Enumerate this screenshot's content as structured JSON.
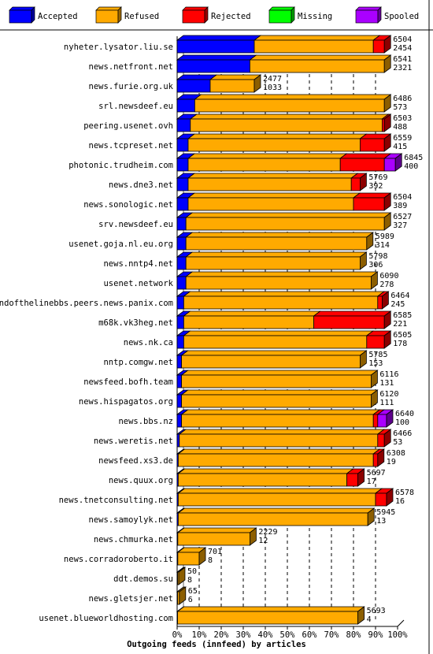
{
  "chart_data": {
    "type": "bar",
    "orientation": "horizontal",
    "stacked": true,
    "style": "3d",
    "title": "Outgoing feeds (innfeed) by articles",
    "xlabel": "",
    "ylabel": "",
    "xlim": [
      0,
      100
    ],
    "x_unit": "percent of articles",
    "ticks": [
      "0%",
      "10%",
      "20%",
      "30%",
      "40%",
      "50%",
      "60%",
      "70%",
      "80%",
      "90%",
      "100%"
    ],
    "grid": "vertical dashed",
    "legend_placement": "top",
    "legend": [
      {
        "name": "Accepted",
        "color": "#0000ff"
      },
      {
        "name": "Refused",
        "color": "#ffaa00"
      },
      {
        "name": "Rejected",
        "color": "#ff0000"
      },
      {
        "name": "Missing",
        "color": "#00ff00"
      },
      {
        "name": "Spooled",
        "color": "#aa00ff"
      }
    ],
    "colors": {
      "Accepted": "#0000ff",
      "Refused": "#ffaa00",
      "Rejected": "#ff0000",
      "Missing": "#00ff00",
      "Spooled": "#aa00ff"
    },
    "rows": [
      {
        "name": "nyheter.lysator.liu.se",
        "offered": "6504",
        "accepted": "2454",
        "segments": {
          "Accepted": 35,
          "Refused": 54,
          "Rejected": 5,
          "Spooled": 0
        }
      },
      {
        "name": "news.netfront.net",
        "offered": "6541",
        "accepted": "2321",
        "segments": {
          "Accepted": 33,
          "Refused": 61,
          "Rejected": 0,
          "Spooled": 0
        }
      },
      {
        "name": "news.furie.org.uk",
        "offered": "2477",
        "accepted": "1033",
        "segments": {
          "Accepted": 15,
          "Refused": 20,
          "Rejected": 0,
          "Spooled": 0
        }
      },
      {
        "name": "srl.newsdeef.eu",
        "offered": "6486",
        "accepted": "573",
        "segments": {
          "Accepted": 8,
          "Refused": 86,
          "Rejected": 0,
          "Spooled": 0
        }
      },
      {
        "name": "peering.usenet.ovh",
        "offered": "6503",
        "accepted": "488",
        "segments": {
          "Accepted": 6,
          "Refused": 87,
          "Rejected": 1,
          "Spooled": 0
        }
      },
      {
        "name": "news.tcpreset.net",
        "offered": "6559",
        "accepted": "415",
        "segments": {
          "Accepted": 5,
          "Refused": 78,
          "Rejected": 11,
          "Spooled": 0
        }
      },
      {
        "name": "photonic.trudheim.com",
        "offered": "6845",
        "accepted": "400",
        "segments": {
          "Accepted": 5,
          "Refused": 69,
          "Rejected": 20,
          "Spooled": 5
        }
      },
      {
        "name": "news.dne3.net",
        "offered": "5769",
        "accepted": "392",
        "segments": {
          "Accepted": 5,
          "Refused": 74,
          "Rejected": 4,
          "Spooled": 0
        }
      },
      {
        "name": "news.sonologic.net",
        "offered": "6504",
        "accepted": "389",
        "segments": {
          "Accepted": 5,
          "Refused": 75,
          "Rejected": 14,
          "Spooled": 0
        }
      },
      {
        "name": "srv.newsdeef.eu",
        "offered": "6527",
        "accepted": "327",
        "segments": {
          "Accepted": 4,
          "Refused": 90,
          "Rejected": 0,
          "Spooled": 0
        }
      },
      {
        "name": "usenet.goja.nl.eu.org",
        "offered": "5989",
        "accepted": "314",
        "segments": {
          "Accepted": 4,
          "Refused": 82,
          "Rejected": 0,
          "Spooled": 0
        }
      },
      {
        "name": "news.nntp4.net",
        "offered": "5798",
        "accepted": "306",
        "segments": {
          "Accepted": 4,
          "Refused": 79,
          "Rejected": 0,
          "Spooled": 0
        }
      },
      {
        "name": "usenet.network",
        "offered": "6090",
        "accepted": "278",
        "segments": {
          "Accepted": 4,
          "Refused": 84,
          "Rejected": 0,
          "Spooled": 0
        }
      },
      {
        "name": "endofthelinebbs.peers.news.panix.com",
        "offered": "6464",
        "accepted": "245",
        "segments": {
          "Accepted": 3,
          "Refused": 88,
          "Rejected": 2,
          "Spooled": 0
        }
      },
      {
        "name": "m68k.vk3heg.net",
        "offered": "6585",
        "accepted": "221",
        "segments": {
          "Accepted": 3,
          "Refused": 59,
          "Rejected": 32,
          "Spooled": 0
        }
      },
      {
        "name": "news.nk.ca",
        "offered": "6505",
        "accepted": "178",
        "segments": {
          "Accepted": 3,
          "Refused": 83,
          "Rejected": 8,
          "Spooled": 0
        }
      },
      {
        "name": "nntp.comgw.net",
        "offered": "5785",
        "accepted": "153",
        "segments": {
          "Accepted": 2,
          "Refused": 81,
          "Rejected": 0,
          "Spooled": 0
        }
      },
      {
        "name": "newsfeed.bofh.team",
        "offered": "6116",
        "accepted": "131",
        "segments": {
          "Accepted": 2,
          "Refused": 86,
          "Rejected": 0,
          "Spooled": 0
        }
      },
      {
        "name": "news.hispagatos.org",
        "offered": "6120",
        "accepted": "111",
        "segments": {
          "Accepted": 2,
          "Refused": 86,
          "Rejected": 0,
          "Spooled": 0
        }
      },
      {
        "name": "news.bbs.nz",
        "offered": "6640",
        "accepted": "100",
        "segments": {
          "Accepted": 2,
          "Refused": 87,
          "Rejected": 2,
          "Spooled": 4
        }
      },
      {
        "name": "news.weretis.net",
        "offered": "6466",
        "accepted": "53",
        "segments": {
          "Accepted": 1,
          "Refused": 90,
          "Rejected": 3,
          "Spooled": 0
        }
      },
      {
        "name": "newsfeed.xs3.de",
        "offered": "6308",
        "accepted": "19",
        "segments": {
          "Accepted": 0.5,
          "Refused": 88.5,
          "Rejected": 2,
          "Spooled": 0
        }
      },
      {
        "name": "news.quux.org",
        "offered": "5697",
        "accepted": "17",
        "segments": {
          "Accepted": 0.5,
          "Refused": 76.5,
          "Rejected": 5,
          "Spooled": 0
        }
      },
      {
        "name": "news.tnetconsulting.net",
        "offered": "6578",
        "accepted": "16",
        "segments": {
          "Accepted": 0.5,
          "Refused": 89.5,
          "Rejected": 5,
          "Spooled": 0
        }
      },
      {
        "name": "news.samoylyk.net",
        "offered": "5945",
        "accepted": "13",
        "segments": {
          "Accepted": 0.5,
          "Refused": 86,
          "Rejected": 0,
          "Spooled": 0
        }
      },
      {
        "name": "news.chmurka.net",
        "offered": "2229",
        "accepted": "12",
        "segments": {
          "Accepted": 0.3,
          "Refused": 32.7,
          "Rejected": 0,
          "Spooled": 0
        }
      },
      {
        "name": "news.corradoroberto.it",
        "offered": "701",
        "accepted": "8",
        "segments": {
          "Accepted": 0.3,
          "Refused": 9.7,
          "Rejected": 0,
          "Spooled": 0
        }
      },
      {
        "name": "ddt.demos.su",
        "offered": "50",
        "accepted": "8",
        "segments": {
          "Accepted": 0.2,
          "Refused": 0.5,
          "Rejected": 0,
          "Spooled": 0
        }
      },
      {
        "name": "news.gletsjer.net",
        "offered": "65",
        "accepted": "6",
        "segments": {
          "Accepted": 0.2,
          "Refused": 0.8,
          "Rejected": 0,
          "Spooled": 0
        }
      },
      {
        "name": "usenet.blueworldhosting.com",
        "offered": "5693",
        "accepted": "4",
        "segments": {
          "Accepted": 0.2,
          "Refused": 81.8,
          "Rejected": 0,
          "Spooled": 0
        }
      }
    ]
  }
}
